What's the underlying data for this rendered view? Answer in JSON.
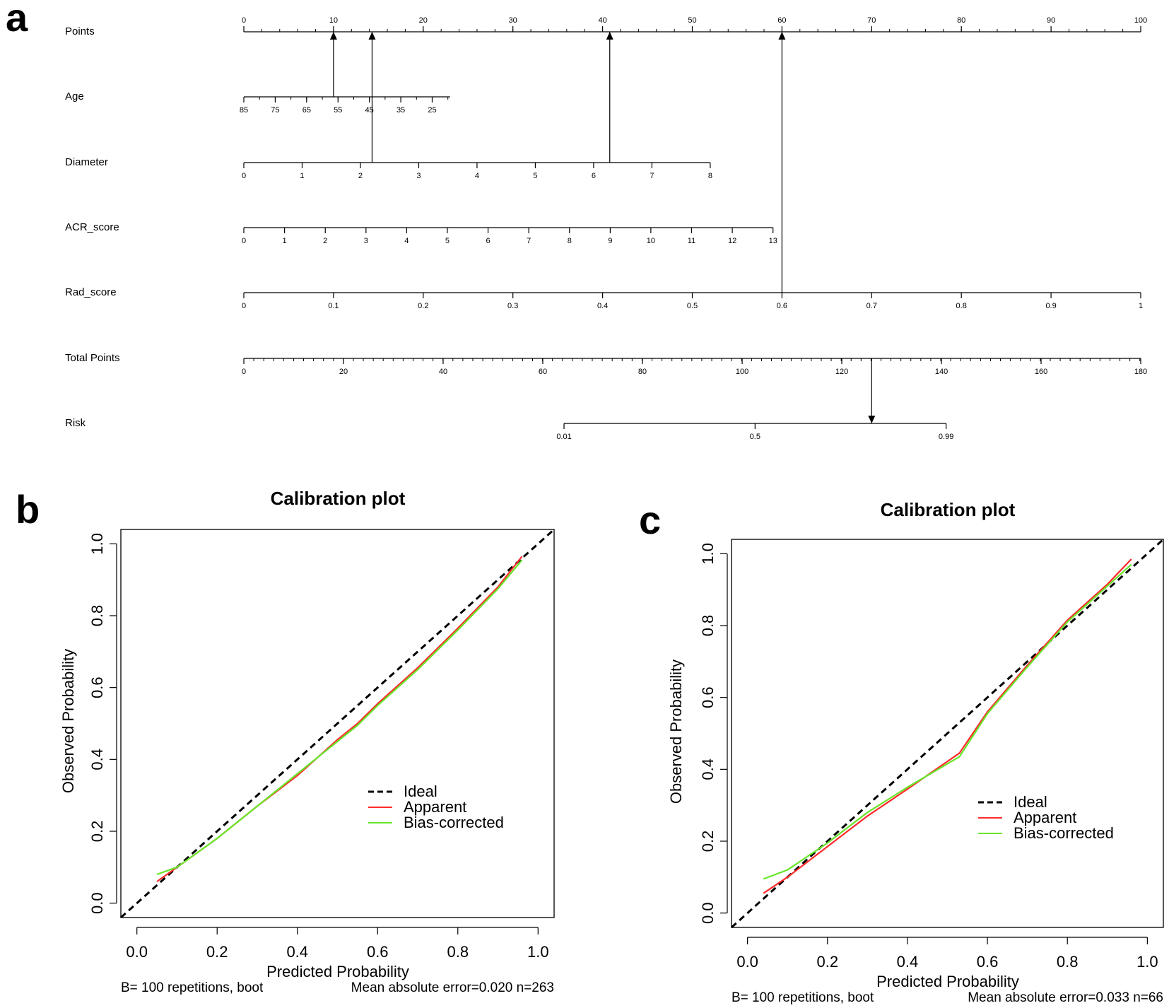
{
  "panels": {
    "a": {
      "letter": "a"
    },
    "b": {
      "letter": "b"
    },
    "c": {
      "letter": "c"
    }
  },
  "chart_data": [
    {
      "type": "nomogram",
      "panel": "a",
      "rows": [
        {
          "label": "Points",
          "points_range": [
            0,
            100
          ],
          "ticks": [
            {
              "label": "0",
              "pts": 0
            },
            {
              "label": "10",
              "pts": 10
            },
            {
              "label": "20",
              "pts": 20
            },
            {
              "label": "30",
              "pts": 30
            },
            {
              "label": "40",
              "pts": 40
            },
            {
              "label": "50",
              "pts": 50
            },
            {
              "label": "60",
              "pts": 60
            },
            {
              "label": "70",
              "pts": 70
            },
            {
              "label": "80",
              "pts": 80
            },
            {
              "label": "90",
              "pts": 90
            },
            {
              "label": "100",
              "pts": 100
            }
          ],
          "minor_step": 2
        },
        {
          "label": "Age",
          "points_range": [
            0,
            23
          ],
          "ticks": [
            {
              "label": "85",
              "pts": 0
            },
            {
              "label": "75",
              "pts": 3.5
            },
            {
              "label": "65",
              "pts": 7
            },
            {
              "label": "55",
              "pts": 10.5
            },
            {
              "label": "45",
              "pts": 14
            },
            {
              "label": "35",
              "pts": 17.5
            },
            {
              "label": "25",
              "pts": 21
            }
          ],
          "minor_step": 1.75
        },
        {
          "label": "Diameter",
          "points_range": [
            0,
            52
          ],
          "ticks": [
            {
              "label": "0",
              "pts": 0
            },
            {
              "label": "1",
              "pts": 6.5
            },
            {
              "label": "2",
              "pts": 13
            },
            {
              "label": "3",
              "pts": 19.5
            },
            {
              "label": "4",
              "pts": 26
            },
            {
              "label": "5",
              "pts": 32.5
            },
            {
              "label": "6",
              "pts": 39
            },
            {
              "label": "7",
              "pts": 45.5
            },
            {
              "label": "8",
              "pts": 52
            }
          ]
        },
        {
          "label": "ACR_score",
          "points_range": [
            0,
            59
          ],
          "ticks": [
            {
              "label": "0",
              "pts": 0
            },
            {
              "label": "1",
              "pts": 4.54
            },
            {
              "label": "2",
              "pts": 9.08
            },
            {
              "label": "3",
              "pts": 13.62
            },
            {
              "label": "4",
              "pts": 18.15
            },
            {
              "label": "5",
              "pts": 22.69
            },
            {
              "label": "6",
              "pts": 27.23
            },
            {
              "label": "7",
              "pts": 31.77
            },
            {
              "label": "8",
              "pts": 36.31
            },
            {
              "label": "9",
              "pts": 40.85
            },
            {
              "label": "10",
              "pts": 45.38
            },
            {
              "label": "11",
              "pts": 49.92
            },
            {
              "label": "12",
              "pts": 54.46
            },
            {
              "label": "13",
              "pts": 59
            }
          ]
        },
        {
          "label": "Rad_score",
          "points_range": [
            0,
            100
          ],
          "ticks": [
            {
              "label": "0",
              "pts": 0
            },
            {
              "label": "0.1",
              "pts": 10
            },
            {
              "label": "0.2",
              "pts": 20
            },
            {
              "label": "0.3",
              "pts": 30
            },
            {
              "label": "0.4",
              "pts": 40
            },
            {
              "label": "0.5",
              "pts": 50
            },
            {
              "label": "0.6",
              "pts": 60
            },
            {
              "label": "0.7",
              "pts": 70
            },
            {
              "label": "0.8",
              "pts": 80
            },
            {
              "label": "0.9",
              "pts": 90
            },
            {
              "label": "1",
              "pts": 100
            }
          ]
        },
        {
          "label": "Total Points",
          "points_range": [
            0,
            100
          ],
          "ticks": [
            {
              "label": "0",
              "pts": 0
            },
            {
              "label": "20",
              "pts": 11.11
            },
            {
              "label": "40",
              "pts": 22.22
            },
            {
              "label": "60",
              "pts": 33.33
            },
            {
              "label": "80",
              "pts": 44.44
            },
            {
              "label": "100",
              "pts": 55.56
            },
            {
              "label": "120",
              "pts": 66.67
            },
            {
              "label": "140",
              "pts": 77.78
            },
            {
              "label": "160",
              "pts": 88.89
            },
            {
              "label": "180",
              "pts": 100
            }
          ],
          "minor_step": 1.11
        },
        {
          "label": "Risk",
          "points_range": [
            35.7,
            78.3
          ],
          "ticks": [
            {
              "label": "0.01",
              "pts": 35.7
            },
            {
              "label": "0.5",
              "pts": 57
            },
            {
              "label": "0.99",
              "pts": 78.3
            }
          ]
        }
      ],
      "arrows": [
        {
          "from_row": 1,
          "to_row": 0,
          "pts": 10,
          "direction": "up"
        },
        {
          "from_row": 2,
          "to_row": 0,
          "pts": 14.3,
          "direction": "up"
        },
        {
          "from_row": 2,
          "to_row": 0,
          "pts": 40.8,
          "direction": "up"
        },
        {
          "from_row": 4,
          "to_row": 0,
          "pts": 60,
          "direction": "up"
        },
        {
          "from_row": 5,
          "to_row": 6,
          "pts": 70,
          "direction": "down"
        }
      ]
    },
    {
      "type": "line",
      "panel": "b",
      "title": "Calibration plot",
      "xlabel": "Predicted Probability",
      "ylabel": "Observed Probability",
      "xlim": [
        -0.04,
        1.04
      ],
      "ylim": [
        -0.04,
        1.04
      ],
      "xticks": [
        "0.0",
        "0.2",
        "0.4",
        "0.6",
        "0.8",
        "1.0"
      ],
      "yticks": [
        "0.0",
        "0.2",
        "0.4",
        "0.6",
        "0.8",
        "1.0"
      ],
      "series": [
        {
          "name": "Ideal",
          "color": "#000000",
          "dash": true,
          "x": [
            -0.04,
            1.04
          ],
          "y": [
            -0.04,
            1.04
          ]
        },
        {
          "name": "Apparent",
          "color": "#ff2a2a",
          "x": [
            0.05,
            0.1,
            0.2,
            0.3,
            0.4,
            0.5,
            0.55,
            0.6,
            0.7,
            0.8,
            0.9,
            0.96
          ],
          "y": [
            0.06,
            0.1,
            0.18,
            0.27,
            0.355,
            0.455,
            0.5,
            0.555,
            0.655,
            0.765,
            0.88,
            0.965
          ]
        },
        {
          "name": "Bias-corrected",
          "color": "#66e62a",
          "x": [
            0.05,
            0.1,
            0.2,
            0.3,
            0.4,
            0.5,
            0.55,
            0.6,
            0.7,
            0.8,
            0.9,
            0.96
          ],
          "y": [
            0.08,
            0.1,
            0.18,
            0.27,
            0.36,
            0.45,
            0.495,
            0.55,
            0.65,
            0.76,
            0.875,
            0.955
          ]
        }
      ],
      "legend": [
        "Ideal",
        "Apparent",
        "Bias-corrected"
      ],
      "footnote_left": "B= 100 repetitions, boot",
      "footnote_right": "Mean absolute error=0.020 n=263"
    },
    {
      "type": "line",
      "panel": "c",
      "title": "Calibration plot",
      "xlabel": "Predicted Probability",
      "ylabel": "Observed Probability",
      "xlim": [
        -0.04,
        1.04
      ],
      "ylim": [
        -0.04,
        1.04
      ],
      "xticks": [
        "0.0",
        "0.2",
        "0.4",
        "0.6",
        "0.8",
        "1.0"
      ],
      "yticks": [
        "0.0",
        "0.2",
        "0.4",
        "0.6",
        "0.8",
        "1.0"
      ],
      "series": [
        {
          "name": "Ideal",
          "color": "#000000",
          "dash": true,
          "x": [
            -0.04,
            1.04
          ],
          "y": [
            -0.04,
            1.04
          ]
        },
        {
          "name": "Apparent",
          "color": "#ff2a2a",
          "x": [
            0.04,
            0.1,
            0.2,
            0.3,
            0.4,
            0.53,
            0.6,
            0.7,
            0.8,
            0.9,
            0.96
          ],
          "y": [
            0.055,
            0.1,
            0.185,
            0.27,
            0.345,
            0.445,
            0.56,
            0.69,
            0.815,
            0.915,
            0.985
          ]
        },
        {
          "name": "Bias-corrected",
          "color": "#66e62a",
          "x": [
            0.04,
            0.1,
            0.2,
            0.3,
            0.4,
            0.53,
            0.6,
            0.7,
            0.8,
            0.9,
            0.96
          ],
          "y": [
            0.095,
            0.12,
            0.195,
            0.28,
            0.35,
            0.435,
            0.555,
            0.685,
            0.81,
            0.91,
            0.97
          ]
        }
      ],
      "legend": [
        "Ideal",
        "Apparent",
        "Bias-corrected"
      ],
      "footnote_left": "B= 100 repetitions, boot",
      "footnote_right": "Mean absolute error=0.033 n=66"
    }
  ]
}
